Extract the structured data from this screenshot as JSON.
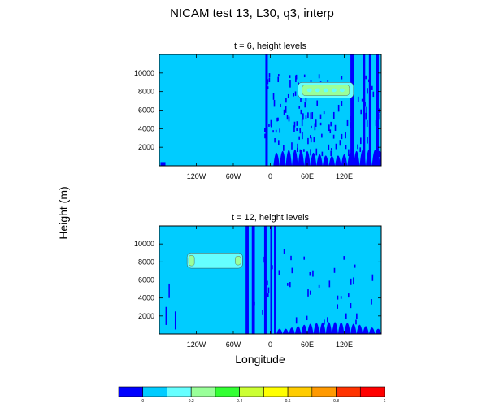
{
  "title": "NICAM test 13, L30, q3, interp",
  "ylabel": "Height (m)",
  "xlabel": "Longitude",
  "colors": {
    "levels": [
      "#0000ff",
      "#00ccff",
      "#66ffff",
      "#99ff99",
      "#33ff33",
      "#ccff33",
      "#ffff00",
      "#ffcc00",
      "#ff9900",
      "#ff3300",
      "#ff0000"
    ],
    "background": "#00ccff"
  },
  "colorbar": {
    "tick_labels": [
      "0",
      "0.2",
      "0.4",
      "0.6",
      "0.8",
      "1"
    ]
  },
  "chart_data": [
    {
      "type": "heatmap",
      "title": "t = 6, height levels",
      "x_ticks": [
        "120W",
        "60W",
        "0",
        "60E",
        "120E"
      ],
      "x_tick_values": [
        -120,
        -60,
        0,
        60,
        120
      ],
      "y_ticks": [
        "2000",
        "4000",
        "6000",
        "8000",
        "10000"
      ],
      "y_tick_values": [
        2000,
        4000,
        6000,
        8000,
        10000
      ],
      "xlim": [
        -180,
        180
      ],
      "ylim": [
        0,
        12000
      ],
      "features": [
        {
          "kind": "tracer-block",
          "lon": [
            45,
            135
          ],
          "height": [
            7300,
            9000
          ],
          "value": 0.3
        },
        {
          "kind": "oscillation-region",
          "lon": [
            -10,
            180
          ],
          "height": [
            0,
            12000
          ]
        }
      ]
    },
    {
      "type": "heatmap",
      "title": "t = 12, height levels",
      "x_ticks": [
        "120W",
        "60W",
        "0",
        "60E",
        "120E"
      ],
      "x_tick_values": [
        -120,
        -60,
        0,
        60,
        120
      ],
      "y_ticks": [
        "2000",
        "4000",
        "6000",
        "8000",
        "10000"
      ],
      "y_tick_values": [
        2000,
        4000,
        6000,
        8000,
        10000
      ],
      "xlim": [
        -180,
        180
      ],
      "ylim": [
        0,
        12000
      ],
      "features": [
        {
          "kind": "tracer-block",
          "lon": [
            -135,
            -45
          ],
          "height": [
            7300,
            9000
          ],
          "value": 0.3
        },
        {
          "kind": "oscillation-region",
          "lon": [
            -40,
            180
          ],
          "height": [
            0,
            12000
          ]
        }
      ]
    }
  ]
}
